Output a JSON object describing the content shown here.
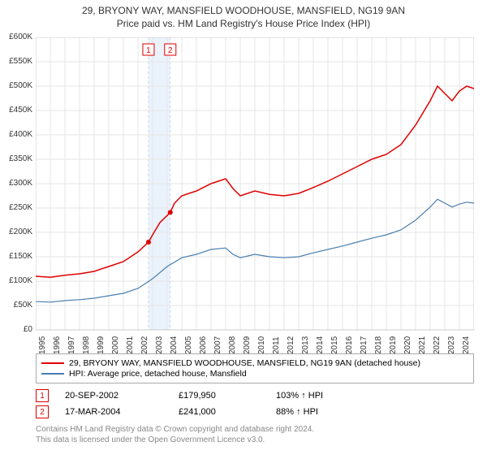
{
  "title_line1": "29, BRYONY WAY, MANSFIELD WOODHOUSE, MANSFIELD, NG19 9AN",
  "title_line2": "Price paid vs. HM Land Registry's House Price Index (HPI)",
  "chart": {
    "type": "line",
    "background_color": "#ffffff",
    "grid_color": "#e6e6e6",
    "border_color": "#cccccc",
    "ylim": [
      0,
      600000
    ],
    "ytick_step": 50000,
    "ytick_labels": [
      "£0",
      "£50K",
      "£100K",
      "£150K",
      "£200K",
      "£250K",
      "£300K",
      "£350K",
      "£400K",
      "£450K",
      "£500K",
      "£550K",
      "£600K"
    ],
    "xlim": [
      1995,
      2025
    ],
    "xtick_step": 1,
    "xtick_labels": [
      "1995",
      "1996",
      "1997",
      "1998",
      "1999",
      "2000",
      "2001",
      "2002",
      "2003",
      "2004",
      "2005",
      "2006",
      "2007",
      "2008",
      "2009",
      "2010",
      "2011",
      "2012",
      "2013",
      "2014",
      "2015",
      "2016",
      "2017",
      "2018",
      "2019",
      "2020",
      "2021",
      "2022",
      "2023",
      "2024"
    ],
    "label_fontsize": 10,
    "series": [
      {
        "name": "29, BRYONY WAY, MANSFIELD WOODHOUSE, MANSFIELD, NG19 9AN (detached house)",
        "color": "#e00000",
        "line_width": 1.5,
        "data": [
          [
            1995,
            110000
          ],
          [
            1996,
            108000
          ],
          [
            1997,
            112000
          ],
          [
            1998,
            115000
          ],
          [
            1999,
            120000
          ],
          [
            2000,
            130000
          ],
          [
            2001,
            140000
          ],
          [
            2002,
            160000
          ],
          [
            2002.72,
            179950
          ],
          [
            2003,
            195000
          ],
          [
            2003.5,
            220000
          ],
          [
            2004.21,
            241000
          ],
          [
            2004.5,
            260000
          ],
          [
            2005,
            275000
          ],
          [
            2006,
            285000
          ],
          [
            2007,
            300000
          ],
          [
            2008,
            310000
          ],
          [
            2008.5,
            290000
          ],
          [
            2009,
            275000
          ],
          [
            2010,
            285000
          ],
          [
            2011,
            278000
          ],
          [
            2012,
            275000
          ],
          [
            2013,
            280000
          ],
          [
            2014,
            292000
          ],
          [
            2015,
            305000
          ],
          [
            2016,
            320000
          ],
          [
            2017,
            335000
          ],
          [
            2018,
            350000
          ],
          [
            2019,
            360000
          ],
          [
            2020,
            380000
          ],
          [
            2021,
            420000
          ],
          [
            2022,
            470000
          ],
          [
            2022.5,
            500000
          ],
          [
            2023,
            485000
          ],
          [
            2023.5,
            470000
          ],
          [
            2024,
            490000
          ],
          [
            2024.5,
            500000
          ],
          [
            2025,
            495000
          ]
        ]
      },
      {
        "name": "HPI: Average price, detached house, Mansfield",
        "color": "#4a7fb0",
        "line_width": 1.2,
        "data": [
          [
            1995,
            58000
          ],
          [
            1996,
            57000
          ],
          [
            1997,
            60000
          ],
          [
            1998,
            62000
          ],
          [
            1999,
            65000
          ],
          [
            2000,
            70000
          ],
          [
            2001,
            75000
          ],
          [
            2002,
            85000
          ],
          [
            2003,
            105000
          ],
          [
            2004,
            130000
          ],
          [
            2005,
            148000
          ],
          [
            2006,
            155000
          ],
          [
            2007,
            165000
          ],
          [
            2008,
            168000
          ],
          [
            2008.5,
            155000
          ],
          [
            2009,
            148000
          ],
          [
            2010,
            155000
          ],
          [
            2011,
            150000
          ],
          [
            2012,
            148000
          ],
          [
            2013,
            150000
          ],
          [
            2014,
            158000
          ],
          [
            2015,
            165000
          ],
          [
            2016,
            172000
          ],
          [
            2017,
            180000
          ],
          [
            2018,
            188000
          ],
          [
            2019,
            195000
          ],
          [
            2020,
            205000
          ],
          [
            2021,
            225000
          ],
          [
            2022,
            252000
          ],
          [
            2022.5,
            268000
          ],
          [
            2023,
            260000
          ],
          [
            2023.5,
            252000
          ],
          [
            2024,
            258000
          ],
          [
            2024.5,
            262000
          ],
          [
            2025,
            260000
          ]
        ]
      }
    ],
    "sales_band": {
      "start_x": 2002.72,
      "end_x": 2004.21,
      "fill": "#eaf2fb",
      "border": "#c8daee"
    },
    "sale_markers": [
      {
        "label": "1",
        "x": 2002.72,
        "y": 179950,
        "color": "#e00000"
      },
      {
        "label": "2",
        "x": 2004.21,
        "y": 241000,
        "color": "#e00000"
      }
    ]
  },
  "legend": [
    {
      "color": "#e00000",
      "label": "29, BRYONY WAY, MANSFIELD WOODHOUSE, MANSFIELD, NG19 9AN (detached house)"
    },
    {
      "color": "#4a7fb0",
      "label": "HPI: Average price, detached house, Mansfield"
    }
  ],
  "sales": [
    {
      "marker": "1",
      "marker_color": "#e00000",
      "date": "20-SEP-2002",
      "price": "£179,950",
      "pct": "103% ↑ HPI"
    },
    {
      "marker": "2",
      "marker_color": "#e00000",
      "date": "17-MAR-2004",
      "price": "£241,000",
      "pct": "88% ↑ HPI"
    }
  ],
  "footer_line1": "Contains HM Land Registry data © Crown copyright and database right 2024.",
  "footer_line2": "This data is licensed under the Open Government Licence v3.0."
}
